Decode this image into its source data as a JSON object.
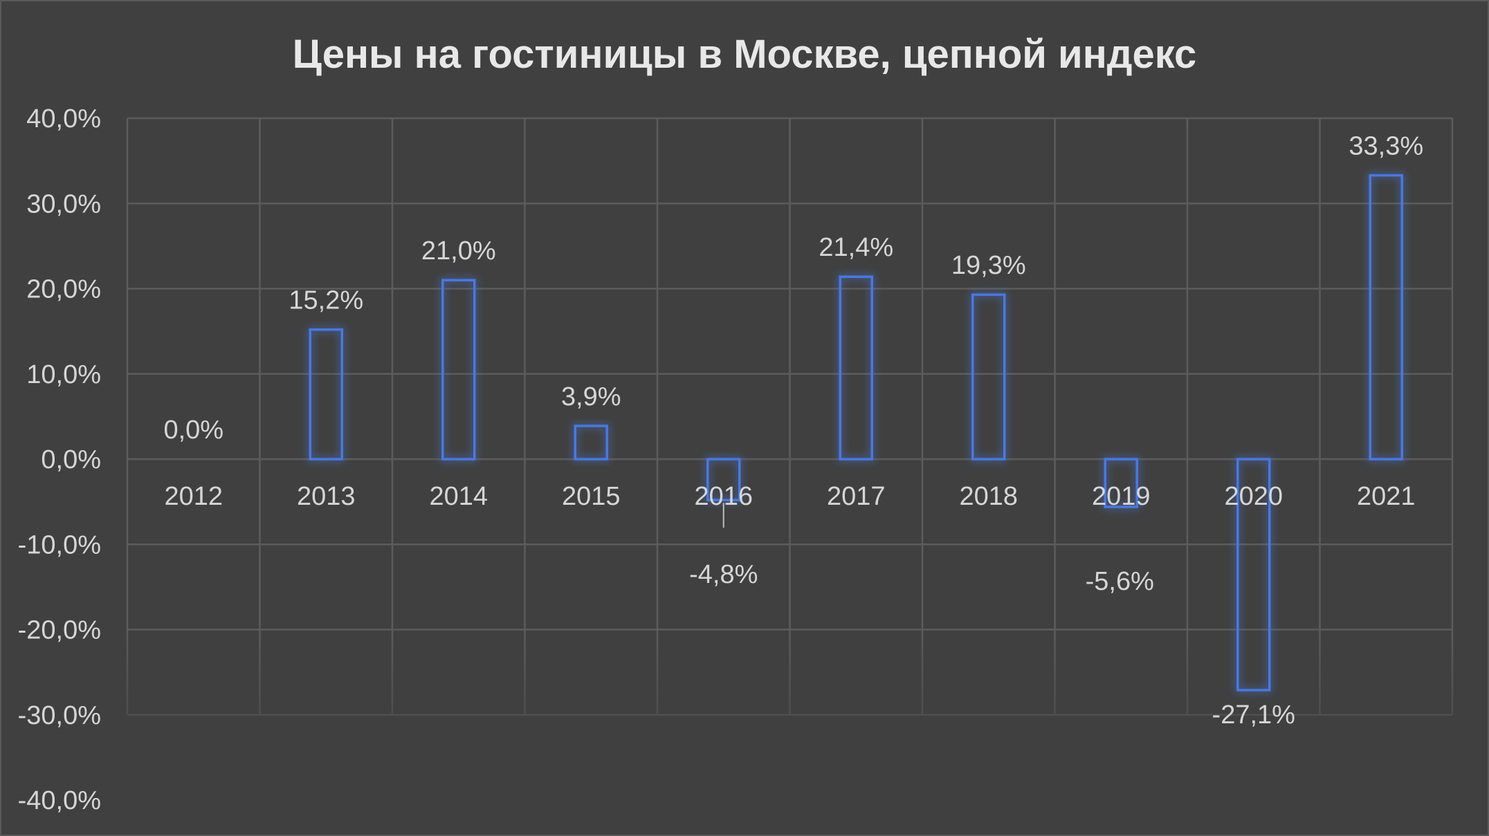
{
  "chart_data": {
    "type": "bar",
    "title": "Цены на гостиницы в Москве, цепной индекс",
    "xlabel": "",
    "ylabel": "",
    "categories": [
      "2012",
      "2013",
      "2014",
      "2015",
      "2016",
      "2017",
      "2018",
      "2019",
      "2020",
      "2021"
    ],
    "values": [
      0.0,
      15.2,
      21.0,
      3.9,
      -4.8,
      21.4,
      19.3,
      -5.6,
      -27.1,
      33.3
    ],
    "data_labels": [
      "0,0%",
      "15,2%",
      "21,0%",
      "3,9%",
      "-4,8%",
      "21,4%",
      "19,3%",
      "-5,6%",
      "-27,1%",
      "33,3%"
    ],
    "ylim": [
      -40,
      40
    ],
    "y_ticks": [
      40,
      30,
      20,
      10,
      0,
      -10,
      -20,
      -30,
      -40
    ],
    "y_tick_labels": [
      "40,0%",
      "30,0%",
      "20,0%",
      "10,0%",
      "0,0%",
      "-10,0%",
      "-20,0%",
      "-30,0%",
      "-40,0%"
    ],
    "grid": true,
    "legend": "none",
    "colors": {
      "background": "#404040",
      "bar_stroke": "#4a78e0",
      "bar_glow": "#2f5fd0",
      "grid": "#5c5c5c",
      "text": "#d6d6d6",
      "title": "#e8e8e8"
    }
  }
}
